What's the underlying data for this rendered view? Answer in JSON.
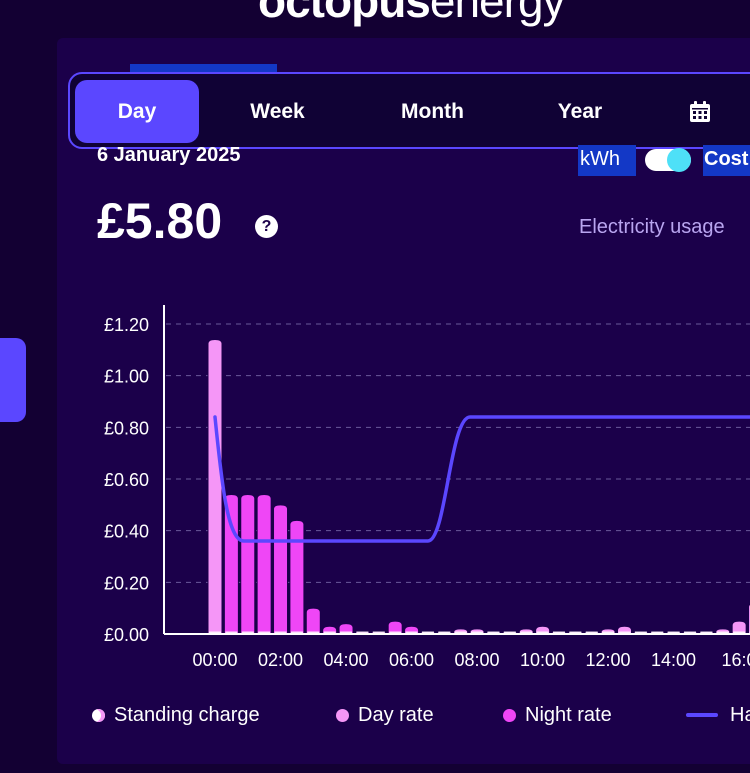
{
  "brand": {
    "bold": "octopus",
    "light": "energy"
  },
  "tabs": [
    {
      "label": "Day",
      "active": true
    },
    {
      "label": "Week",
      "active": false
    },
    {
      "label": "Month",
      "active": false
    },
    {
      "label": "Year",
      "active": false
    },
    {
      "label": "",
      "icon": "calendar-icon",
      "active": false
    }
  ],
  "summary": {
    "date": "6 January 2025",
    "price": "£5.80",
    "help": "?"
  },
  "units": {
    "kwh": "kWh",
    "cost": "Cost",
    "toggle_on": true
  },
  "usage_label": "Electricity usage",
  "colors": {
    "accent": "#5b47ff",
    "day_rate": "#f596f7",
    "night_rate": "#ef46f6",
    "standing": "#ffffff",
    "line": "#5b47ff"
  },
  "chart_data": {
    "type": "bar",
    "ylim": [
      0,
      1.2
    ],
    "y_ticks": [
      "£0.00",
      "£0.20",
      "£0.40",
      "£0.60",
      "£0.80",
      "£1.00",
      "£1.20"
    ],
    "x_ticks": [
      "00:00",
      "02:00",
      "04:00",
      "06:00",
      "08:00",
      "10:00",
      "12:00",
      "14:00",
      "16:0"
    ],
    "series": [
      {
        "name": "Day rate",
        "values": [
          1.14
        ]
      },
      {
        "name": "Night rate",
        "values": [
          0.54,
          0.54,
          0.54,
          0.5,
          0.44,
          0.1,
          0.03,
          0.04,
          0.01,
          0.01,
          0.05,
          0.03
        ]
      },
      {
        "name": "Day rate",
        "values": [
          0.01,
          0.01,
          0.02,
          0.02,
          0.01,
          0.01,
          0.02,
          0.03,
          0.01,
          0.01,
          0.01,
          0.02,
          0.03,
          0.01,
          0.01,
          0.01,
          0.01,
          0.01,
          0.02,
          0.05,
          0.12
        ]
      }
    ],
    "line": {
      "name": "Ha",
      "values": [
        0.84,
        0.36,
        0.36,
        0.36,
        0.36,
        0.84,
        0.84
      ]
    }
  },
  "legend": [
    {
      "label": "Standing charge",
      "kind": "dot"
    },
    {
      "label": "Day rate",
      "kind": "dot"
    },
    {
      "label": "Night rate",
      "kind": "dot"
    },
    {
      "label": "Ha",
      "kind": "line"
    }
  ]
}
